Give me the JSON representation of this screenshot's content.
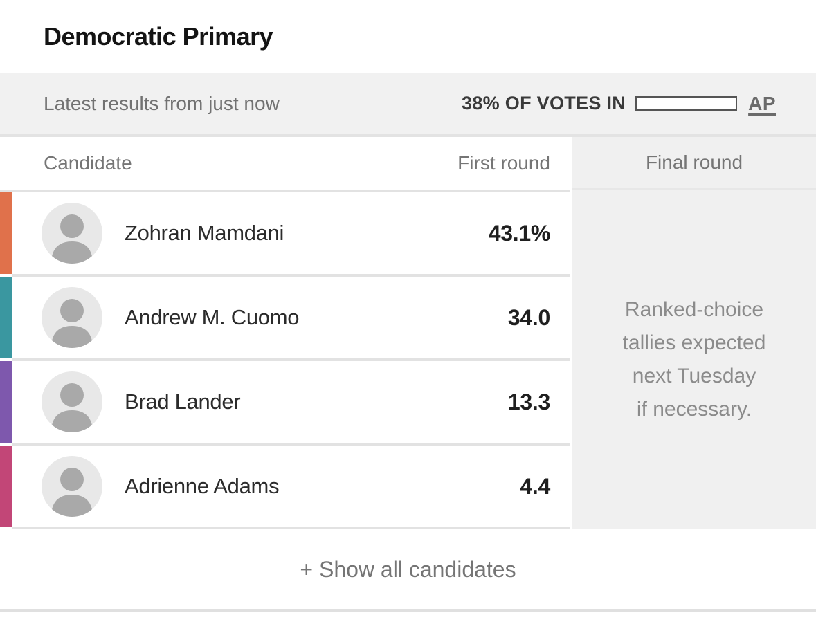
{
  "header": {
    "title": "Democratic Primary"
  },
  "status_bar": {
    "latest_results": "Latest results from just now",
    "votes_in_label": "38% OF VOTES IN",
    "votes_in_percent": 38,
    "source_label": "AP"
  },
  "table": {
    "columns": {
      "candidate": "Candidate",
      "first_round": "First round",
      "final_round": "Final round"
    },
    "rows": [
      {
        "name": "Zohran Mamdani",
        "first_round": "43.1%",
        "color": "#E0714B"
      },
      {
        "name": "Andrew M. Cuomo",
        "first_round": "34.0",
        "color": "#3A97A0"
      },
      {
        "name": "Brad Lander",
        "first_round": "13.3",
        "color": "#7E58AD"
      },
      {
        "name": "Adrienne Adams",
        "first_round": "4.4",
        "color": "#C24677"
      }
    ],
    "final_round_note": {
      "lines": [
        "Ranked-choice",
        "tallies expected",
        "next Tuesday",
        "if necessary."
      ]
    }
  },
  "footer": {
    "show_all_label": "+ Show all candidates"
  },
  "colors": {
    "status_bar_bg": "#f1f1f1",
    "final_col_bg": "#f0f0f0",
    "separator": "#e2e2e2",
    "progress_fill": "#787878"
  }
}
